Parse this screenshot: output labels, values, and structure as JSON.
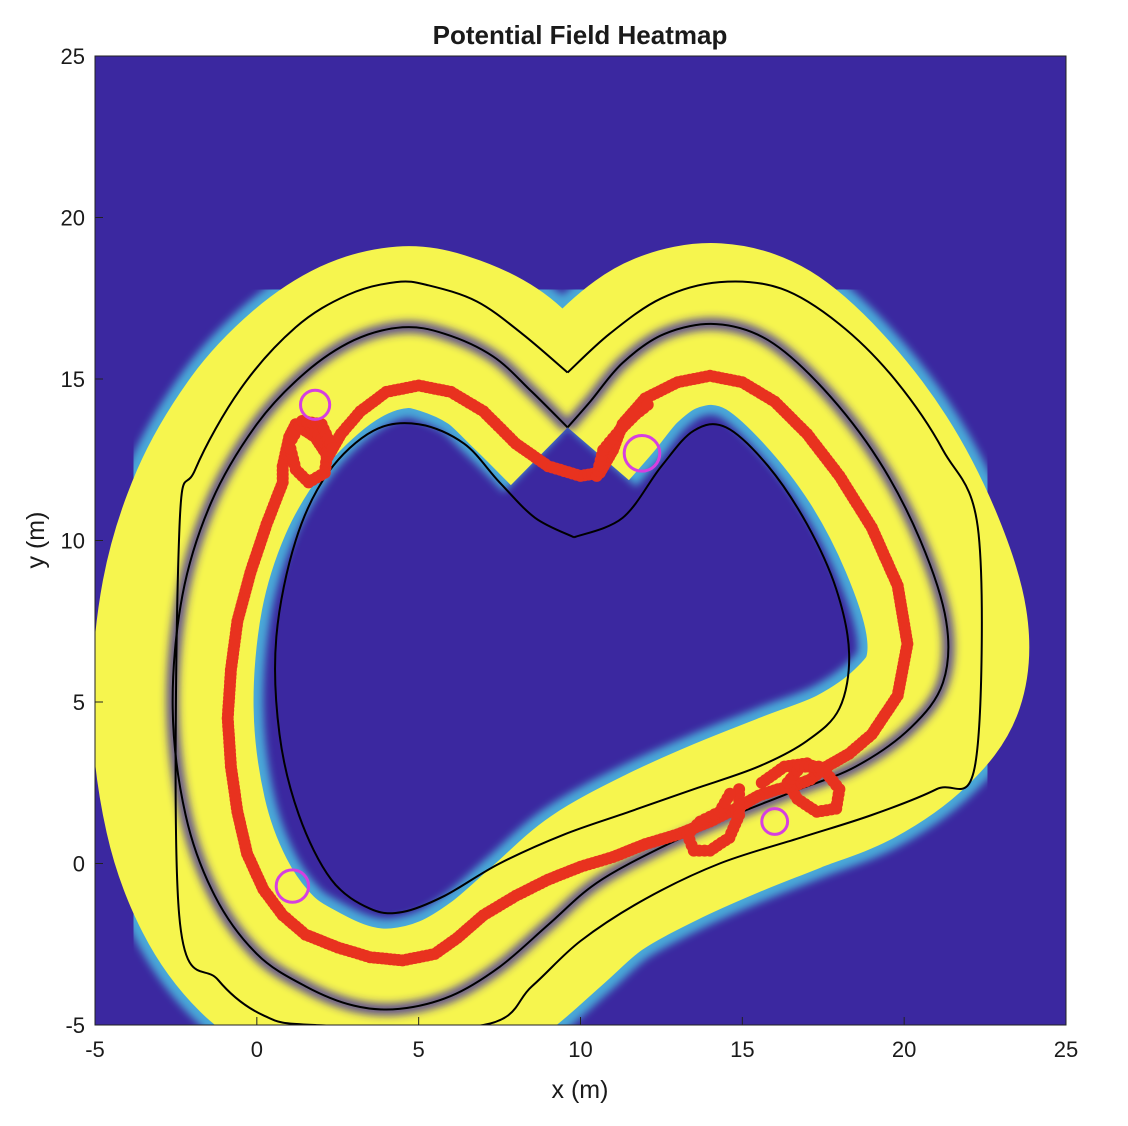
{
  "chart_data": {
    "type": "heatmap",
    "title": "Potential Field Heatmap",
    "xlabel": "x (m)",
    "ylabel": "y (m)",
    "xlim": [
      -5,
      25
    ],
    "ylim": [
      -5,
      25
    ],
    "xticks": [
      "-5",
      "0",
      "5",
      "10",
      "15",
      "20",
      "25"
    ],
    "yticks": [
      "-5",
      "0",
      "5",
      "10",
      "15",
      "20",
      "25"
    ],
    "grid": false,
    "colors": {
      "background": "#3b28a0",
      "field_high": "#f6f54e",
      "field_edge": "#4aa8d8",
      "centerline": "#000000",
      "trajectory": "#e8321f",
      "obstacles": "#d63fe0"
    },
    "centerline": [
      [
        9.6,
        13.5
      ],
      [
        8.5,
        14.6
      ],
      [
        7.3,
        15.7
      ],
      [
        5.8,
        16.4
      ],
      [
        4.5,
        16.6
      ],
      [
        3.0,
        16.2
      ],
      [
        1.5,
        15.2
      ],
      [
        0.0,
        13.6
      ],
      [
        -1.4,
        11.2
      ],
      [
        -2.3,
        8.3
      ],
      [
        -2.6,
        4.8
      ],
      [
        -2.2,
        1.5
      ],
      [
        -1.3,
        -1.0
      ],
      [
        0.0,
        -2.8
      ],
      [
        1.5,
        -3.8
      ],
      [
        3.0,
        -4.4
      ],
      [
        4.4,
        -4.5
      ],
      [
        6.0,
        -4.1
      ],
      [
        7.5,
        -3.2
      ],
      [
        9.0,
        -1.9
      ],
      [
        10.5,
        -0.6
      ],
      [
        12.5,
        0.5
      ],
      [
        14.5,
        1.4
      ],
      [
        16.5,
        2.2
      ],
      [
        18.5,
        3.0
      ],
      [
        20.2,
        4.2
      ],
      [
        21.2,
        5.6
      ],
      [
        21.3,
        7.5
      ],
      [
        20.5,
        10.0
      ],
      [
        19.2,
        12.5
      ],
      [
        17.5,
        14.7
      ],
      [
        15.8,
        16.2
      ],
      [
        14.2,
        16.7
      ],
      [
        12.6,
        16.4
      ],
      [
        11.3,
        15.5
      ],
      [
        10.3,
        14.3
      ],
      [
        9.6,
        13.5
      ]
    ],
    "inner_boundary": [
      [
        9.8,
        10.1
      ],
      [
        8.6,
        10.7
      ],
      [
        7.5,
        11.8
      ],
      [
        6.4,
        13.0
      ],
      [
        5.0,
        13.6
      ],
      [
        3.6,
        13.4
      ],
      [
        2.2,
        12.1
      ],
      [
        1.2,
        10.0
      ],
      [
        0.6,
        7.0
      ],
      [
        0.7,
        4.0
      ],
      [
        1.3,
        1.5
      ],
      [
        2.3,
        -0.5
      ],
      [
        3.5,
        -1.4
      ],
      [
        4.5,
        -1.5
      ],
      [
        5.8,
        -1.0
      ],
      [
        7.5,
        0.0
      ],
      [
        9.5,
        0.9
      ],
      [
        11.5,
        1.6
      ],
      [
        13.5,
        2.3
      ],
      [
        15.5,
        3.0
      ],
      [
        17.0,
        3.8
      ],
      [
        18.0,
        4.8
      ],
      [
        18.3,
        6.5
      ],
      [
        17.9,
        8.5
      ],
      [
        17.0,
        10.5
      ],
      [
        15.8,
        12.3
      ],
      [
        14.5,
        13.5
      ],
      [
        13.5,
        13.4
      ],
      [
        12.5,
        12.3
      ],
      [
        11.3,
        10.7
      ],
      [
        9.8,
        10.1
      ]
    ],
    "outer_boundary": [
      [
        9.6,
        15.2
      ],
      [
        8.2,
        16.4
      ],
      [
        6.8,
        17.4
      ],
      [
        5.3,
        17.9
      ],
      [
        4.3,
        18.0
      ],
      [
        2.8,
        17.6
      ],
      [
        1.2,
        16.6
      ],
      [
        -0.5,
        14.7
      ],
      [
        -1.9,
        12.2
      ],
      [
        -2.4,
        10.2
      ],
      [
        -2.4,
        -1.6
      ],
      [
        -1.2,
        -3.6
      ],
      [
        0.2,
        -4.7
      ],
      [
        1.8,
        -5.0
      ],
      [
        7.0,
        -5.0
      ],
      [
        8.5,
        -3.8
      ],
      [
        10.0,
        -2.4
      ],
      [
        12.0,
        -1.1
      ],
      [
        14.3,
        0.0
      ],
      [
        16.8,
        0.8
      ],
      [
        19.0,
        1.5
      ],
      [
        21.0,
        2.3
      ],
      [
        22.2,
        3.1
      ],
      [
        22.3,
        10.2
      ],
      [
        21.2,
        12.8
      ],
      [
        19.7,
        15.0
      ],
      [
        18.0,
        16.7
      ],
      [
        16.2,
        17.8
      ],
      [
        14.3,
        18.0
      ],
      [
        12.5,
        17.5
      ],
      [
        10.9,
        16.4
      ],
      [
        9.6,
        15.2
      ]
    ],
    "trajectory": [
      [
        0.8,
        12.3
      ],
      [
        1.0,
        13.2
      ],
      [
        1.2,
        13.6
      ],
      [
        1.8,
        13.2
      ],
      [
        2.2,
        12.6
      ],
      [
        2.6,
        13.3
      ],
      [
        3.2,
        14.0
      ],
      [
        4.0,
        14.6
      ],
      [
        5.0,
        14.8
      ],
      [
        6.0,
        14.6
      ],
      [
        7.0,
        14.0
      ],
      [
        8.0,
        13.0
      ],
      [
        9.0,
        12.3
      ],
      [
        10.0,
        12.0
      ],
      [
        10.6,
        12.1
      ],
      [
        11.0,
        12.8
      ],
      [
        11.3,
        13.6
      ],
      [
        12.0,
        14.4
      ],
      [
        13.0,
        14.9
      ],
      [
        14.0,
        15.1
      ],
      [
        15.0,
        14.9
      ],
      [
        16.0,
        14.3
      ],
      [
        17.0,
        13.3
      ],
      [
        18.0,
        12.0
      ],
      [
        19.0,
        10.4
      ],
      [
        19.8,
        8.6
      ],
      [
        20.1,
        6.8
      ],
      [
        19.8,
        5.2
      ],
      [
        19.0,
        4.0
      ],
      [
        18.3,
        3.4
      ],
      [
        17.6,
        3.0
      ],
      [
        17.1,
        2.6
      ],
      [
        16.6,
        2.4
      ],
      [
        16.1,
        2.3
      ],
      [
        15.5,
        2.1
      ],
      [
        14.8,
        1.7
      ],
      [
        14.0,
        1.3
      ],
      [
        13.0,
        0.9
      ],
      [
        12.0,
        0.6
      ],
      [
        11.0,
        0.2
      ],
      [
        10.0,
        -0.1
      ],
      [
        9.0,
        -0.5
      ],
      [
        8.0,
        -1.0
      ],
      [
        7.0,
        -1.6
      ],
      [
        6.2,
        -2.3
      ],
      [
        5.5,
        -2.8
      ],
      [
        4.5,
        -3.0
      ],
      [
        3.5,
        -2.9
      ],
      [
        2.5,
        -2.6
      ],
      [
        1.5,
        -2.2
      ],
      [
        0.8,
        -1.6
      ],
      [
        0.2,
        -0.8
      ],
      [
        -0.3,
        0.3
      ],
      [
        -0.6,
        1.6
      ],
      [
        -0.8,
        3.0
      ],
      [
        -0.9,
        4.5
      ],
      [
        -0.8,
        6.0
      ],
      [
        -0.6,
        7.5
      ],
      [
        -0.2,
        9.0
      ],
      [
        0.3,
        10.5
      ],
      [
        0.8,
        11.8
      ],
      [
        0.8,
        12.3
      ]
    ],
    "trajectory_loops": [
      [
        [
          1.6,
          13.6
        ],
        [
          2.2,
          12.9
        ],
        [
          2.1,
          12.1
        ],
        [
          1.6,
          11.8
        ],
        [
          1.2,
          12.2
        ],
        [
          1.0,
          13.0
        ],
        [
          1.4,
          13.7
        ],
        [
          2.0,
          13.6
        ],
        [
          2.4,
          12.7
        ]
      ],
      [
        [
          15.6,
          2.5
        ],
        [
          16.3,
          3.0
        ],
        [
          17.0,
          3.1
        ],
        [
          17.6,
          2.8
        ],
        [
          18.0,
          2.3
        ],
        [
          17.9,
          1.7
        ],
        [
          17.3,
          1.6
        ],
        [
          16.7,
          2.0
        ],
        [
          16.4,
          2.5
        ],
        [
          16.8,
          3.0
        ],
        [
          17.5,
          3.0
        ]
      ],
      [
        [
          14.9,
          2.3
        ],
        [
          14.9,
          1.5
        ],
        [
          14.6,
          0.8
        ],
        [
          14.0,
          0.4
        ],
        [
          13.5,
          0.4
        ],
        [
          13.3,
          0.9
        ],
        [
          13.7,
          1.3
        ],
        [
          14.3,
          1.6
        ],
        [
          14.7,
          2.3
        ]
      ],
      [
        [
          10.5,
          12.0
        ],
        [
          10.7,
          12.8
        ],
        [
          11.2,
          13.4
        ],
        [
          11.7,
          13.9
        ],
        [
          12.2,
          14.3
        ]
      ]
    ],
    "obstacles": [
      {
        "x": 1.8,
        "y": 14.2,
        "r": 0.45
      },
      {
        "x": 11.9,
        "y": 12.7,
        "r": 0.55
      },
      {
        "x": 16.0,
        "y": 1.3,
        "r": 0.4
      },
      {
        "x": 1.1,
        "y": -0.7,
        "r": 0.5
      }
    ]
  }
}
